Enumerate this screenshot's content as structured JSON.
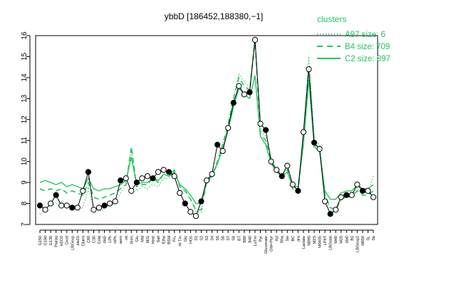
{
  "chart_data": {
    "type": "line",
    "title": "ybbD [186452,188380,−1]",
    "xlabel": "",
    "ylabel": "",
    "ylim": [
      7,
      16
    ],
    "y_ticks": [
      7,
      8,
      9,
      10,
      11,
      12,
      13,
      14,
      15,
      16
    ],
    "grid": false,
    "legend_position": "top-right",
    "legend_title": "clusters",
    "colors": {
      "A97": "#22c55e",
      "B4": "#22c55e",
      "C2": "#22c55e",
      "points": "#000000"
    },
    "categories": [
      "G150",
      "G180",
      "G135",
      "Pairaq",
      "H2O2",
      "Oxctl",
      "LBGexp",
      "dia15",
      "Diami",
      "C60",
      "C30",
      "Cold",
      "dia5",
      "LPh",
      "HPh",
      "aero",
      "nit",
      "ferm",
      "Glu",
      "Mal",
      "M/G",
      "Heat",
      "Salt",
      "Etha",
      "BSM",
      "Fru",
      "Hi Tm",
      "Gly",
      "HOs",
      "S1",
      "S2",
      "S3",
      "S4",
      "S5",
      "S6",
      "S7",
      "S8",
      "BT",
      "B80",
      "B40",
      "LoTm",
      "Pyr",
      "Gluconate",
      "GM+Ptyr",
      "Xyl",
      "Rha",
      "Sw",
      "BC",
      "ara",
      "Lactate",
      "M090",
      "M2S",
      "M0405",
      "LPhT",
      "LBGstat",
      "M40",
      "M20",
      "dia0",
      "B1",
      "LBGexp2",
      "M050",
      "SL",
      "Sb"
    ],
    "series": [
      {
        "name": "A97 size: 6",
        "style": "dotted",
        "values": [
          7.5,
          7.8,
          7.9,
          8.0,
          8.1,
          7.8,
          7.9,
          7.7,
          7.8,
          8.7,
          7.8,
          7.6,
          7.8,
          7.9,
          8.0,
          8.5,
          8.9,
          10.5,
          8.6,
          8.8,
          8.7,
          8.9,
          8.8,
          9.2,
          9.2,
          9.6,
          8.8,
          8.6,
          8.2,
          7.6,
          7.6,
          9.0,
          9.3,
          10.0,
          10.8,
          11.8,
          13.0,
          14.2,
          13.8,
          13.5,
          15.9,
          11.5,
          11.2,
          10.2,
          9.6,
          9.4,
          9.8,
          8.8,
          8.7,
          11.2,
          15.0,
          11.0,
          10.8,
          8.4,
          7.7,
          7.6,
          8.2,
          8.3,
          8.4,
          8.7,
          8.5,
          8.5,
          9.3
        ]
      },
      {
        "name": "B4 size: 709",
        "style": "dashed",
        "values": [
          8.7,
          8.6,
          8.7,
          8.6,
          8.7,
          8.5,
          8.6,
          8.5,
          8.4,
          9.0,
          8.3,
          8.2,
          8.3,
          8.4,
          8.5,
          8.7,
          8.9,
          10.7,
          8.8,
          8.9,
          8.9,
          9.2,
          9.0,
          9.4,
          9.3,
          9.6,
          8.8,
          8.6,
          8.2,
          7.7,
          7.7,
          9.0,
          9.3,
          10.0,
          10.8,
          11.8,
          13.0,
          14.0,
          13.6,
          13.4,
          15.8,
          11.3,
          11.0,
          10.0,
          9.5,
          9.3,
          9.6,
          8.7,
          8.6,
          11.0,
          14.6,
          10.8,
          10.6,
          8.4,
          7.8,
          7.7,
          8.2,
          8.3,
          8.3,
          8.6,
          8.4,
          8.4,
          8.6
        ]
      },
      {
        "name": "C2 size: 897",
        "style": "solid",
        "values": [
          9.0,
          9.1,
          9.0,
          8.9,
          9.0,
          8.8,
          8.9,
          8.8,
          8.7,
          9.2,
          8.7,
          8.6,
          8.7,
          8.7,
          8.8,
          8.9,
          9.1,
          10.2,
          8.9,
          9.0,
          9.0,
          9.2,
          9.1,
          9.4,
          9.3,
          9.5,
          8.9,
          8.7,
          8.4,
          8.0,
          8.0,
          9.1,
          9.3,
          9.9,
          10.6,
          11.5,
          12.6,
          13.5,
          13.2,
          13.0,
          14.1,
          11.2,
          10.8,
          9.9,
          9.5,
          9.3,
          9.5,
          8.8,
          8.8,
          10.8,
          13.9,
          10.7,
          10.5,
          8.6,
          8.2,
          8.2,
          8.5,
          8.6,
          8.6,
          8.9,
          8.7,
          8.7,
          8.9
        ]
      },
      {
        "name": "",
        "style": "points",
        "values": [
          7.9,
          7.7,
          8.0,
          8.4,
          7.9,
          7.9,
          7.8,
          7.8,
          8.6,
          9.5,
          7.7,
          7.8,
          7.9,
          8.0,
          8.1,
          9.1,
          9.2,
          8.6,
          9.0,
          9.2,
          9.3,
          9.2,
          9.5,
          9.6,
          9.5,
          9.3,
          8.5,
          8.0,
          7.6,
          7.4,
          8.1,
          9.1,
          9.4,
          10.8,
          10.5,
          11.6,
          12.8,
          13.6,
          13.2,
          13.3,
          15.8,
          11.8,
          11.5,
          10.0,
          9.6,
          9.3,
          9.8,
          8.9,
          8.6,
          11.4,
          14.4,
          10.9,
          10.6,
          8.1,
          7.5,
          7.7,
          8.3,
          8.4,
          8.4,
          8.9,
          8.6,
          8.6,
          8.3
        ]
      }
    ]
  }
}
